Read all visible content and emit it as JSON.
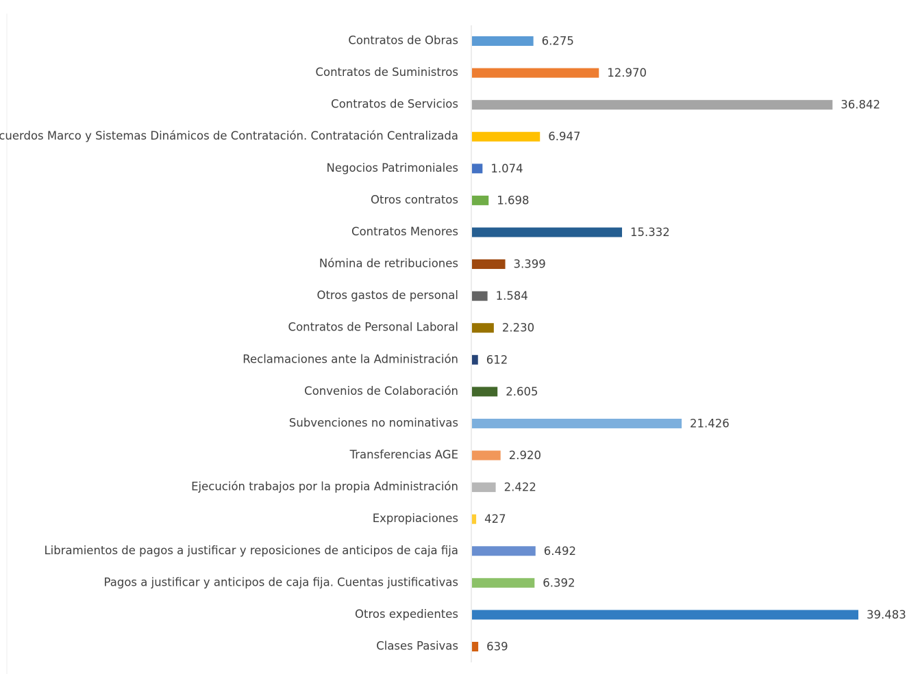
{
  "chart_data": {
    "type": "bar",
    "orientation": "horizontal",
    "categories": [
      "Contratos de Obras",
      "Contratos de Suministros",
      "Contratos de Servicios",
      "Acuerdos Marco y Sistemas Dinámicos de Contratación. Contratación Centralizada",
      "Negocios Patrimoniales",
      "Otros contratos",
      "Contratos Menores",
      "Nómina de retribuciones",
      "Otros gastos de personal",
      "Contratos de Personal Laboral",
      "Reclamaciones ante la Administración",
      "Convenios de Colaboración",
      "Subvenciones no nominativas",
      "Transferencias AGE",
      "Ejecución trabajos por la propia Administración",
      "Expropiaciones",
      "Libramientos de pagos a justificar y  reposiciones de anticipos de caja fija",
      "Pagos a justificar y anticipos de caja fija. Cuentas justificativas",
      "Otros expedientes",
      "Clases Pasivas"
    ],
    "values": [
      6275,
      12970,
      36842,
      6947,
      1074,
      1698,
      15332,
      3399,
      1584,
      2230,
      612,
      2605,
      21426,
      2920,
      2422,
      427,
      6492,
      6392,
      39483,
      639
    ],
    "value_labels": [
      "6.275",
      "12.970",
      "36.842",
      "6.947",
      "1.074",
      "1.698",
      "15.332",
      "3.399",
      "1.584",
      "2.230",
      "612",
      "2.605",
      "21.426",
      "2.920",
      "2.422",
      "427",
      "6.492",
      "6.392",
      "39.483",
      "639"
    ],
    "colors": [
      "#5b9bd5",
      "#ed7d31",
      "#a5a5a5",
      "#ffc000",
      "#4472c4",
      "#70ad47",
      "#255e91",
      "#9e480e",
      "#636363",
      "#997300",
      "#264478",
      "#43682b",
      "#7cafdd",
      "#f1975a",
      "#b7b7b7",
      "#ffcd33",
      "#698ed0",
      "#8cc168",
      "#327dc2",
      "#d26012"
    ]
  }
}
